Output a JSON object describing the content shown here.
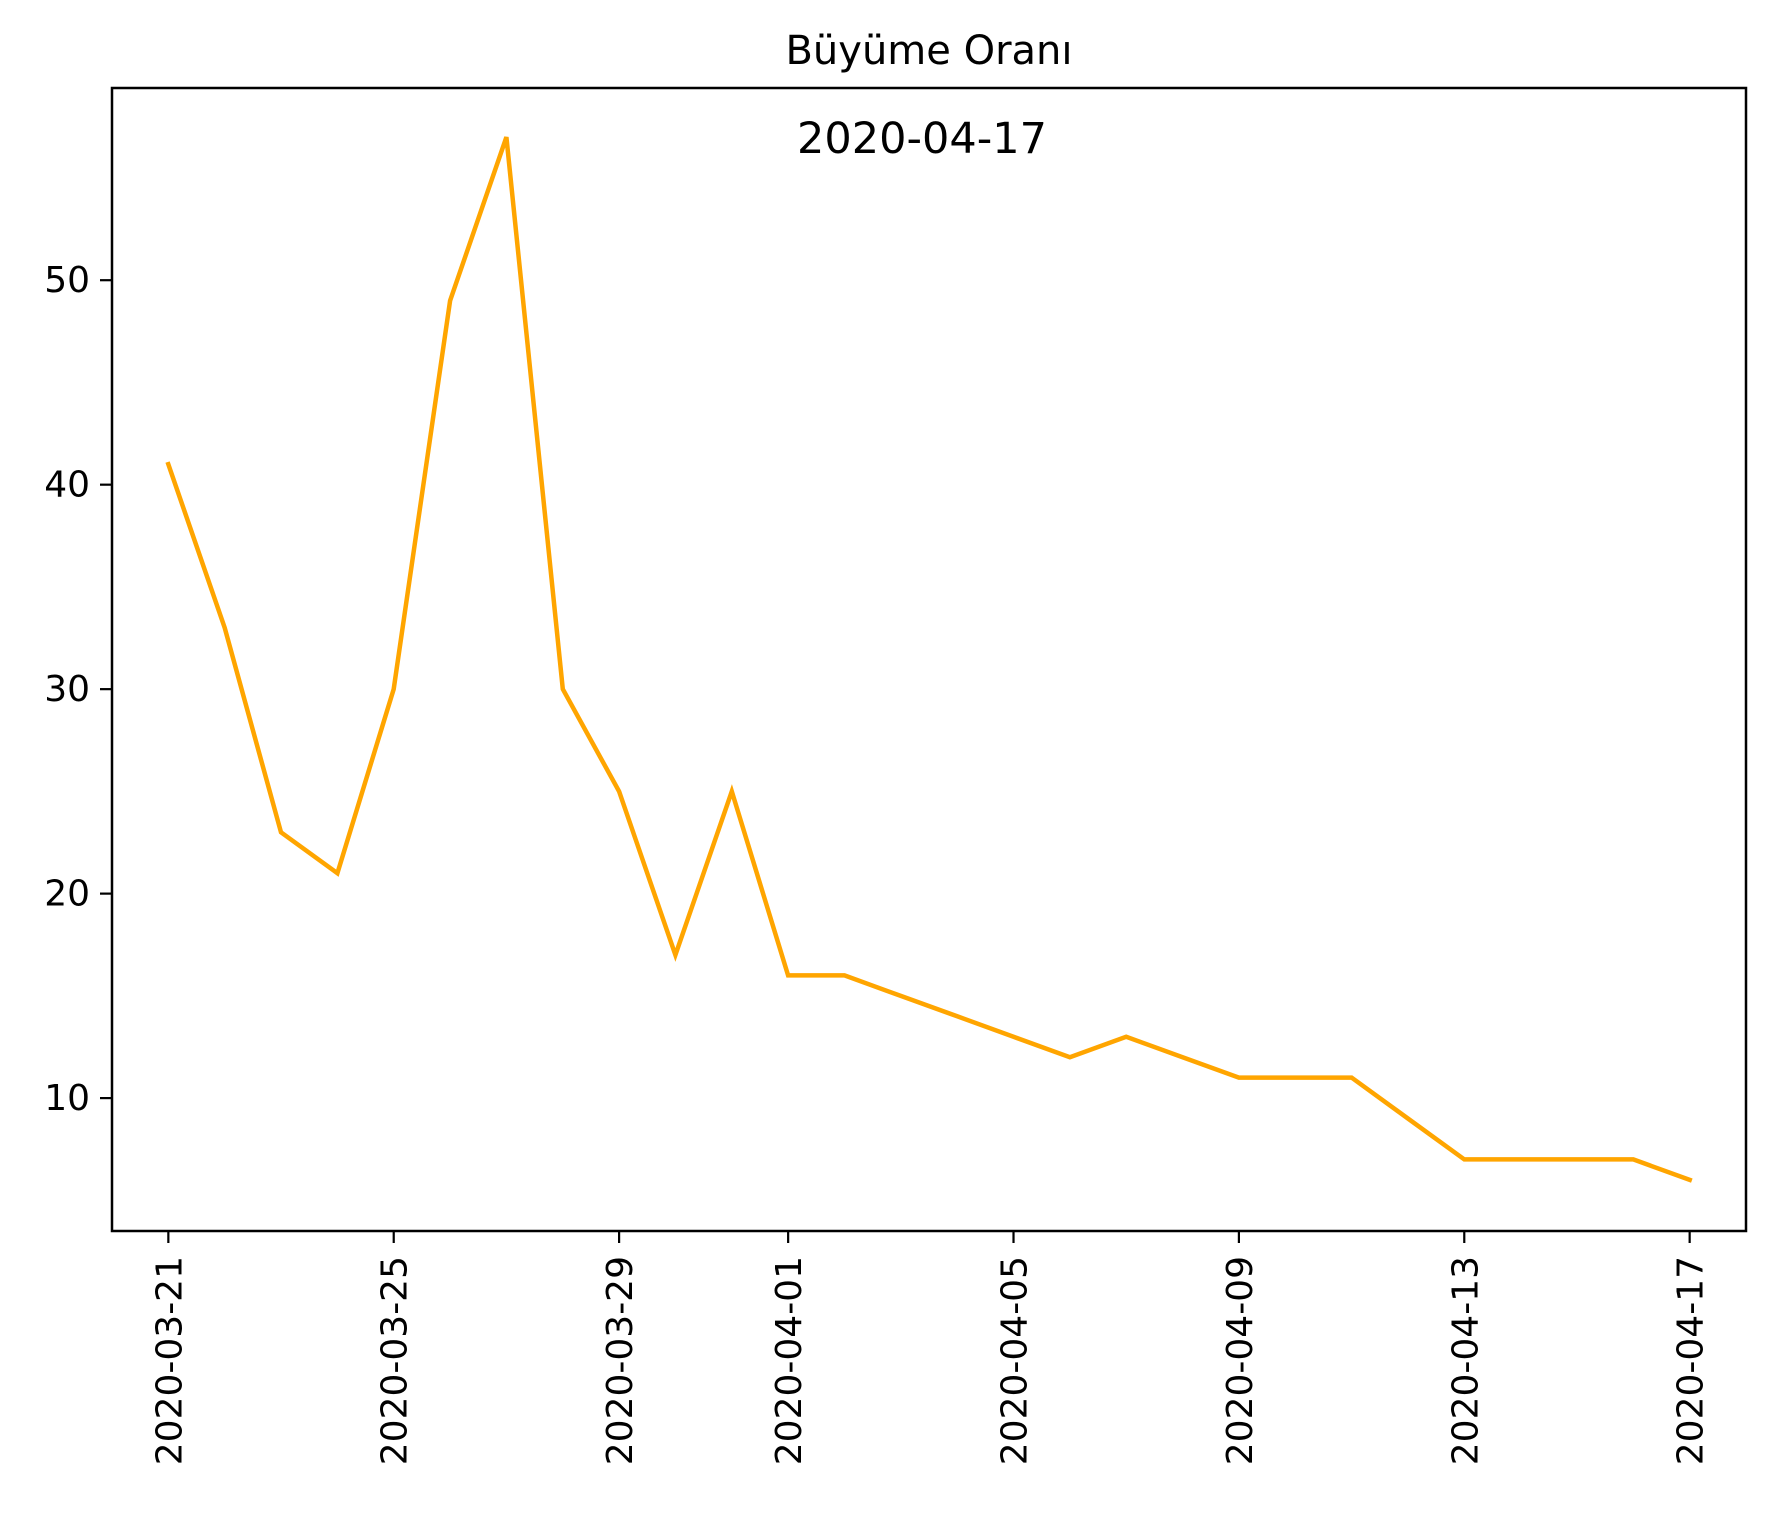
{
  "chart_data": {
    "type": "line",
    "title": "Büyüme Oranı",
    "annotation": "2020-04-17",
    "xlabel": "",
    "ylabel": "",
    "ylim": [
      3.5,
      59.4
    ],
    "xlim": [
      "2020-03-20",
      "2020-04-18"
    ],
    "yticks": [
      10,
      20,
      30,
      40,
      50
    ],
    "xticks": [
      "2020-03-21",
      "2020-03-25",
      "2020-03-29",
      "2020-04-01",
      "2020-04-05",
      "2020-04-09",
      "2020-04-13",
      "2020-04-17"
    ],
    "grid": false,
    "line_color": "#FFA500",
    "series": [
      {
        "x": [
          "2020-03-21",
          "2020-03-22",
          "2020-03-23",
          "2020-03-24",
          "2020-03-25",
          "2020-03-26",
          "2020-03-27",
          "2020-03-28",
          "2020-03-29",
          "2020-03-30",
          "2020-03-31",
          "2020-04-01",
          "2020-04-02",
          "2020-04-03",
          "2020-04-04",
          "2020-04-05",
          "2020-04-06",
          "2020-04-07",
          "2020-04-08",
          "2020-04-09",
          "2020-04-10",
          "2020-04-11",
          "2020-04-12",
          "2020-04-13",
          "2020-04-14",
          "2020-04-15",
          "2020-04-16",
          "2020-04-17"
        ],
        "values": [
          41,
          33,
          23,
          21,
          30,
          49,
          57,
          30,
          25,
          17,
          25,
          16,
          16,
          15,
          14,
          13,
          12,
          13,
          12,
          11,
          11,
          11,
          9,
          7,
          7,
          7,
          7,
          6
        ]
      }
    ]
  }
}
